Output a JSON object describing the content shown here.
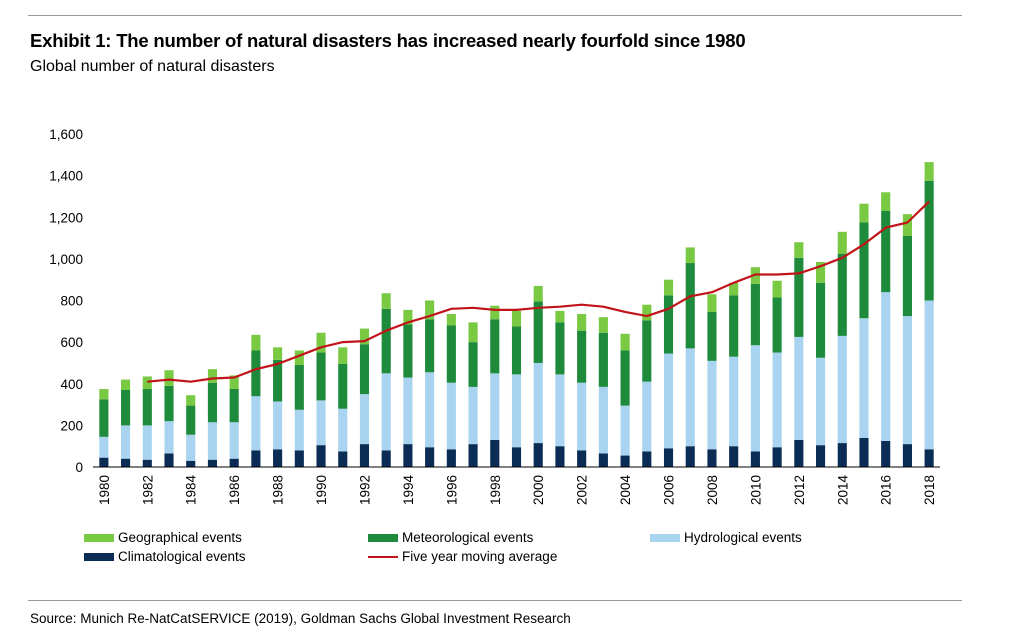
{
  "header": {
    "title": "Exhibit 1: The number of natural disasters has increased nearly fourfold since 1980",
    "subtitle": "Global number of natural disasters"
  },
  "footer": {
    "source": "Source: Munich Re-NatCatSERVICE (2019), Goldman Sachs Global Investment Research"
  },
  "colors": {
    "geographical": "#7ac943",
    "meteorological": "#1e8a3c",
    "hydrological": "#a8d4f0",
    "climatological": "#0b2d55",
    "moving_average": "#c0141a"
  },
  "legend": {
    "geographical": "Geographical events",
    "meteorological": "Meteorological events",
    "hydrological": "Hydrological events",
    "climatological": "Climatological events",
    "moving_average": "Five year moving average"
  },
  "chart_data": {
    "type": "bar",
    "stacked": true,
    "title": "Exhibit 1: The number of natural disasters has increased nearly fourfold since 1980",
    "subtitle": "Global number of natural disasters",
    "xlabel": "",
    "ylabel": "",
    "ylim": [
      0,
      1600
    ],
    "yticks": [
      0,
      200,
      400,
      600,
      800,
      1000,
      1200,
      1400,
      1600
    ],
    "ytick_labels": [
      "0",
      "200",
      "400",
      "600",
      "800",
      "1,000",
      "1,200",
      "1,400",
      "1,600"
    ],
    "categories": [
      "1980",
      "1981",
      "1982",
      "1983",
      "1984",
      "1985",
      "1986",
      "1987",
      "1988",
      "1989",
      "1990",
      "1991",
      "1992",
      "1993",
      "1994",
      "1995",
      "1996",
      "1997",
      "1998",
      "1999",
      "2000",
      "2001",
      "2002",
      "2003",
      "2004",
      "2005",
      "2006",
      "2007",
      "2008",
      "2009",
      "2010",
      "2011",
      "2012",
      "2013",
      "2014",
      "2015",
      "2016",
      "2017",
      "2018"
    ],
    "xtick_labels": [
      "1980",
      "1982",
      "1984",
      "1986",
      "1988",
      "1990",
      "1992",
      "1994",
      "1996",
      "1998",
      "2000",
      "2002",
      "2004",
      "2006",
      "2008",
      "2010",
      "2012",
      "2014",
      "2016",
      "2018"
    ],
    "series": [
      {
        "name": "Climatological events",
        "key": "climatological",
        "values": [
          45,
          40,
          35,
          65,
          30,
          35,
          40,
          80,
          85,
          80,
          105,
          75,
          110,
          80,
          110,
          95,
          85,
          110,
          130,
          95,
          115,
          100,
          80,
          65,
          55,
          75,
          90,
          100,
          85,
          100,
          75,
          95,
          130,
          105,
          115,
          140,
          125,
          110,
          85
        ]
      },
      {
        "name": "Hydrological events",
        "key": "hydrological",
        "values": [
          100,
          160,
          165,
          155,
          125,
          180,
          175,
          260,
          230,
          195,
          215,
          205,
          240,
          370,
          320,
          360,
          320,
          275,
          320,
          350,
          385,
          345,
          325,
          320,
          240,
          335,
          455,
          470,
          425,
          430,
          510,
          455,
          495,
          420,
          515,
          575,
          715,
          615,
          715
        ]
      },
      {
        "name": "Meteorological events",
        "key": "meteorological",
        "values": [
          180,
          170,
          175,
          170,
          140,
          190,
          160,
          220,
          200,
          215,
          230,
          215,
          240,
          310,
          255,
          255,
          275,
          215,
          260,
          230,
          295,
          250,
          250,
          260,
          265,
          295,
          280,
          410,
          235,
          295,
          295,
          265,
          380,
          360,
          395,
          460,
          390,
          385,
          575
        ]
      },
      {
        "name": "Geographical events",
        "key": "geographical",
        "values": [
          50,
          50,
          60,
          75,
          50,
          65,
          65,
          75,
          60,
          70,
          95,
          80,
          75,
          75,
          70,
          90,
          55,
          95,
          65,
          75,
          75,
          55,
          80,
          75,
          80,
          75,
          75,
          75,
          85,
          60,
          80,
          80,
          75,
          100,
          105,
          90,
          90,
          105,
          90
        ]
      }
    ],
    "line": {
      "name": "Five year moving average",
      "x_start": "1982",
      "values": [
        410,
        420,
        410,
        425,
        430,
        470,
        495,
        535,
        575,
        600,
        605,
        655,
        695,
        725,
        760,
        765,
        755,
        755,
        765,
        770,
        780,
        770,
        745,
        725,
        760,
        820,
        840,
        885,
        925,
        925,
        930,
        965,
        1005,
        1070,
        1150,
        1175,
        1275
      ]
    }
  }
}
